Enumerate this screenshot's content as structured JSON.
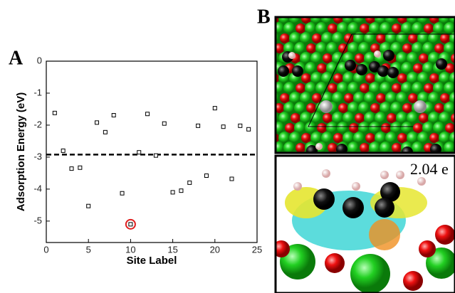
{
  "panels": {
    "a": "A",
    "b": "B"
  },
  "image_annotation": "2.04 e",
  "chart_data": {
    "type": "scatter",
    "x_label": "Site Label",
    "y_label": "Adsorption Energy (eV)",
    "x": [
      1,
      2,
      3,
      4,
      5,
      6,
      7,
      8,
      9,
      10,
      11,
      12,
      13,
      14,
      15,
      16,
      17,
      18,
      19,
      20,
      21,
      22,
      23,
      24
    ],
    "series": [
      {
        "color": "#000000",
        "values": [
          -1.62,
          -2.8,
          -3.36,
          -3.33,
          -4.53,
          -1.92,
          -2.22,
          -1.69,
          -4.13,
          -5.1,
          -2.85,
          -1.65,
          -2.95,
          -1.95,
          -4.1,
          -4.05,
          -3.8,
          -2.02,
          -3.58,
          -1.47,
          -2.05,
          -3.68,
          -2.02,
          -2.13
        ]
      }
    ],
    "highlight": 9,
    "highlight_color": "#e02020",
    "reference_line": -2.92,
    "xlim": [
      0,
      25
    ],
    "xticks": [
      0,
      5,
      10,
      15,
      20,
      25
    ],
    "ylim": [
      -5.67,
      0
    ],
    "yticks": [
      0,
      -1,
      -2,
      -3,
      -4,
      -5
    ]
  }
}
